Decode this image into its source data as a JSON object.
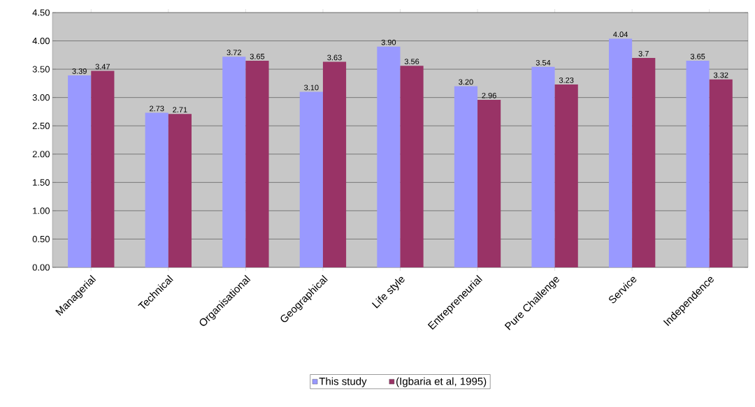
{
  "chart_data": {
    "type": "bar",
    "categories": [
      "Managerial",
      "Technical",
      "Organisational",
      "Geographical",
      "Life style",
      "Entrepreneurial",
      "Pure Challenge",
      "Service",
      "Independence"
    ],
    "series": [
      {
        "name": "This study",
        "color": "#9999ff",
        "values": [
          3.39,
          2.73,
          3.72,
          3.1,
          3.9,
          3.2,
          3.54,
          4.04,
          3.65
        ],
        "value_labels": [
          "3.39",
          "2.73",
          "3.72",
          "3.10",
          "3.90",
          "3.20",
          "3.54",
          "4.04",
          "3.65"
        ]
      },
      {
        "name": "(Igbaria et al, 1995)",
        "color": "#993366",
        "values": [
          3.47,
          2.71,
          3.65,
          3.63,
          3.56,
          2.96,
          3.23,
          3.7,
          3.32
        ],
        "value_labels": [
          "3.47",
          "2.71",
          "3.65",
          "3.63",
          "3.56",
          "2.96",
          "3.23",
          "3.7",
          "3.32"
        ]
      }
    ],
    "ylim": [
      0,
      4.5
    ],
    "yticks": [
      {
        "value": 0,
        "label": "0.00"
      },
      {
        "value": 0.5,
        "label": "0.50"
      },
      {
        "value": 1,
        "label": "1.00"
      },
      {
        "value": 1.5,
        "label": "1.50"
      },
      {
        "value": 2,
        "label": "2.00"
      },
      {
        "value": 2.5,
        "label": "2.50"
      },
      {
        "value": 3,
        "label": "3.00"
      },
      {
        "value": 3.5,
        "label": "3.50"
      },
      {
        "value": 4,
        "label": "4.00"
      },
      {
        "value": 4.5,
        "label": "4.50"
      }
    ],
    "grid": "y",
    "legend": "bottom"
  }
}
